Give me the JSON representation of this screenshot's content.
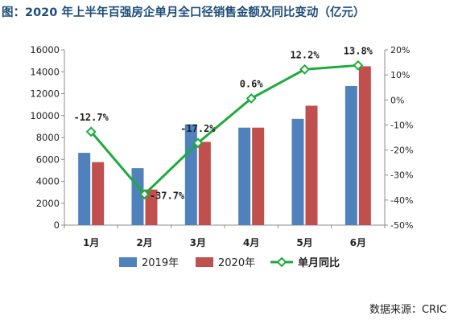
{
  "title": "图：2020 年上半年百强房企单月全口径销售金额及同比变动（亿元）",
  "source": "数据来源：CRIC",
  "chart_data": {
    "type": "bar",
    "categories": [
      "1月",
      "2月",
      "3月",
      "4月",
      "5月",
      "6月"
    ],
    "series": [
      {
        "name": "2019年",
        "kind": "bar",
        "axis": "left",
        "color": "#4f81bd",
        "values": [
          6600,
          5200,
          9200,
          8900,
          9700,
          12700
        ]
      },
      {
        "name": "2020年",
        "kind": "bar",
        "axis": "left",
        "color": "#c0504d",
        "values": [
          5750,
          3250,
          7600,
          8900,
          10900,
          14500
        ]
      },
      {
        "name": "单月同比",
        "kind": "line",
        "axis": "right",
        "color": "#1eaa3c",
        "values": [
          -12.7,
          -37.7,
          -17.2,
          0.6,
          12.2,
          13.8
        ],
        "labels": [
          "-12.7%",
          "-37.7%",
          "-17.2%",
          "0.6%",
          "12.2%",
          "13.8%"
        ]
      }
    ],
    "y_left": {
      "min": 0,
      "max": 16000,
      "ticks": [
        "0",
        "2000",
        "4000",
        "6000",
        "8000",
        "10000",
        "12000",
        "14000",
        "16000"
      ]
    },
    "y_right": {
      "min": -50,
      "max": 20,
      "ticks": [
        "-50%",
        "-40%",
        "-30%",
        "-20%",
        "-10%",
        "0%",
        "10%",
        "20%"
      ]
    },
    "grid": false,
    "legend_position": "bottom"
  }
}
